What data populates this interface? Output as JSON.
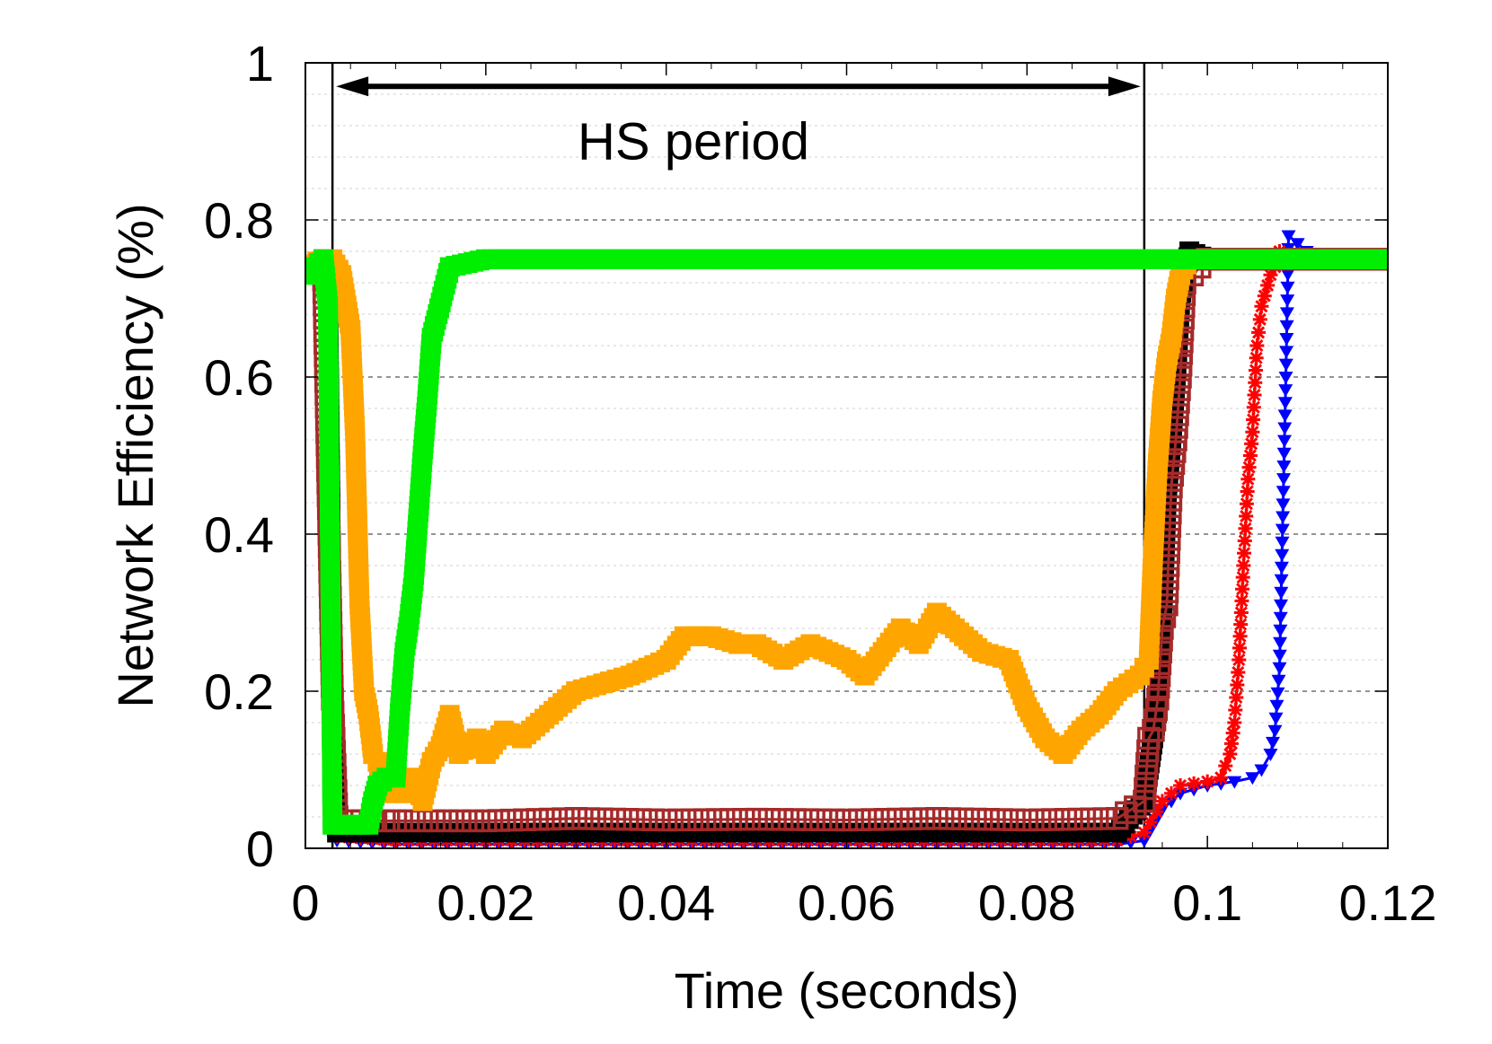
{
  "chart_data": {
    "type": "line",
    "title": "",
    "xlabel": "Time (seconds)",
    "ylabel": "Network Efficiency (%)",
    "xlim": [
      0,
      0.12
    ],
    "ylim": [
      0,
      1
    ],
    "xticks": [
      0,
      0.02,
      0.04,
      0.06,
      0.08,
      0.1,
      0.12
    ],
    "xtick_labels": [
      "0",
      "0.02",
      "0.04",
      "0.06",
      "0.08",
      "0.1",
      "0.12"
    ],
    "yticks": [
      0,
      0.2,
      0.4,
      0.6,
      0.8,
      1
    ],
    "ytick_labels": [
      "0",
      "0.2",
      "0.4",
      "0.6",
      "0.8",
      "1"
    ],
    "grid": "horizontal dashed, major and minor",
    "annotation": {
      "text": "HS period",
      "x_start": 0.003,
      "x_end": 0.093,
      "arrow_y": 0.97,
      "text_y": 0.9,
      "vlines": [
        0.003,
        0.093
      ]
    },
    "series": [
      {
        "color": "#0000ff",
        "marker": "triangle-down",
        "x": [
          0,
          0.002,
          0.0025,
          0.003,
          0.0035,
          0.01,
          0.03,
          0.05,
          0.07,
          0.09,
          0.093,
          0.095,
          0.097,
          0.1,
          0.103,
          0.105,
          0.106,
          0.107,
          0.1075,
          0.108,
          0.1083,
          0.1087,
          0.109,
          0.112,
          0.115,
          0.12
        ],
        "y": [
          0.74,
          0.75,
          0.66,
          0.15,
          0.01,
          0.005,
          0.005,
          0.005,
          0.005,
          0.005,
          0.01,
          0.05,
          0.07,
          0.08,
          0.085,
          0.09,
          0.1,
          0.12,
          0.15,
          0.23,
          0.39,
          0.6,
          0.78,
          0.75,
          0.75,
          0.75
        ]
      },
      {
        "color": "#ff0000",
        "marker": "asterisk",
        "x": [
          0,
          0.002,
          0.0025,
          0.003,
          0.0035,
          0.01,
          0.03,
          0.05,
          0.07,
          0.09,
          0.093,
          0.095,
          0.097,
          0.1,
          0.1015,
          0.1025,
          0.103,
          0.1035,
          0.104,
          0.1045,
          0.105,
          0.1055,
          0.106,
          0.107,
          0.1075,
          0.108,
          0.11,
          0.115,
          0.12
        ],
        "y": [
          0.74,
          0.75,
          0.72,
          0.09,
          0.015,
          0.01,
          0.01,
          0.01,
          0.01,
          0.01,
          0.02,
          0.06,
          0.08,
          0.085,
          0.09,
          0.12,
          0.16,
          0.24,
          0.36,
          0.47,
          0.53,
          0.64,
          0.69,
          0.73,
          0.74,
          0.76,
          0.75,
          0.75,
          0.75
        ]
      },
      {
        "color": "#000000",
        "marker": "filled-square",
        "x": [
          0,
          0.002,
          0.0025,
          0.003,
          0.0035,
          0.01,
          0.03,
          0.05,
          0.07,
          0.09,
          0.093,
          0.0945,
          0.095,
          0.0955,
          0.096,
          0.0965,
          0.097,
          0.098,
          0.1,
          0.11,
          0.12
        ],
        "y": [
          0.74,
          0.75,
          0.72,
          0.19,
          0.02,
          0.02,
          0.02,
          0.02,
          0.02,
          0.02,
          0.06,
          0.18,
          0.3,
          0.45,
          0.52,
          0.6,
          0.7,
          0.76,
          0.75,
          0.75,
          0.75
        ]
      },
      {
        "color": "#a52a2a",
        "marker": "open-square",
        "x": [
          0,
          0.002,
          0.003,
          0.0035,
          0.005,
          0.01,
          0.02,
          0.03,
          0.04,
          0.05,
          0.06,
          0.07,
          0.08,
          0.09,
          0.093,
          0.0935,
          0.094,
          0.0945,
          0.095,
          0.0955,
          0.096,
          0.0965,
          0.097,
          0.0975,
          0.1,
          0.11,
          0.12
        ],
        "y": [
          0.74,
          0.74,
          0.19,
          0.04,
          0.035,
          0.035,
          0.035,
          0.038,
          0.036,
          0.037,
          0.036,
          0.038,
          0.036,
          0.038,
          0.06,
          0.14,
          0.15,
          0.19,
          0.28,
          0.31,
          0.46,
          0.52,
          0.6,
          0.72,
          0.75,
          0.75,
          0.75
        ]
      },
      {
        "color": "#ffa500",
        "marker": "filled-square",
        "x": [
          0,
          0.002,
          0.003,
          0.004,
          0.005,
          0.0055,
          0.006,
          0.0065,
          0.007,
          0.0075,
          0.008,
          0.0085,
          0.009,
          0.0095,
          0.01,
          0.011,
          0.012,
          0.013,
          0.014,
          0.015,
          0.016,
          0.017,
          0.018,
          0.019,
          0.02,
          0.022,
          0.024,
          0.026,
          0.028,
          0.03,
          0.033,
          0.036,
          0.04,
          0.042,
          0.045,
          0.048,
          0.05,
          0.053,
          0.056,
          0.06,
          0.062,
          0.064,
          0.066,
          0.068,
          0.07,
          0.072,
          0.075,
          0.078,
          0.08,
          0.082,
          0.084,
          0.086,
          0.088,
          0.09,
          0.0925,
          0.093,
          0.0935,
          0.094,
          0.0945,
          0.095,
          0.0955,
          0.096,
          0.0965,
          0.097,
          0.098,
          0.1,
          0.11,
          0.12
        ],
        "y": [
          0.74,
          0.75,
          0.75,
          0.73,
          0.66,
          0.53,
          0.31,
          0.2,
          0.17,
          0.12,
          0.11,
          0.09,
          0.07,
          0.08,
          0.08,
          0.07,
          0.09,
          0.06,
          0.11,
          0.13,
          0.17,
          0.12,
          0.13,
          0.14,
          0.12,
          0.15,
          0.14,
          0.16,
          0.18,
          0.2,
          0.21,
          0.22,
          0.24,
          0.27,
          0.27,
          0.26,
          0.26,
          0.24,
          0.26,
          0.24,
          0.22,
          0.25,
          0.28,
          0.26,
          0.3,
          0.28,
          0.25,
          0.24,
          0.18,
          0.14,
          0.12,
          0.15,
          0.17,
          0.2,
          0.22,
          0.23,
          0.24,
          0.38,
          0.49,
          0.57,
          0.62,
          0.65,
          0.7,
          0.73,
          0.75,
          0.75,
          0.75,
          0.75
        ]
      },
      {
        "color": "#00ee00",
        "marker": "filled-square",
        "x": [
          0,
          0.002,
          0.0025,
          0.003,
          0.0035,
          0.005,
          0.007,
          0.0075,
          0.008,
          0.009,
          0.01,
          0.0105,
          0.011,
          0.0115,
          0.012,
          0.0125,
          0.013,
          0.0135,
          0.014,
          0.016,
          0.02,
          0.04,
          0.06,
          0.08,
          0.1,
          0.12
        ],
        "y": [
          0.73,
          0.75,
          0.69,
          0.03,
          0.03,
          0.03,
          0.03,
          0.06,
          0.08,
          0.09,
          0.09,
          0.18,
          0.25,
          0.29,
          0.34,
          0.42,
          0.5,
          0.57,
          0.65,
          0.74,
          0.75,
          0.75,
          0.75,
          0.75,
          0.75,
          0.75
        ]
      }
    ]
  }
}
